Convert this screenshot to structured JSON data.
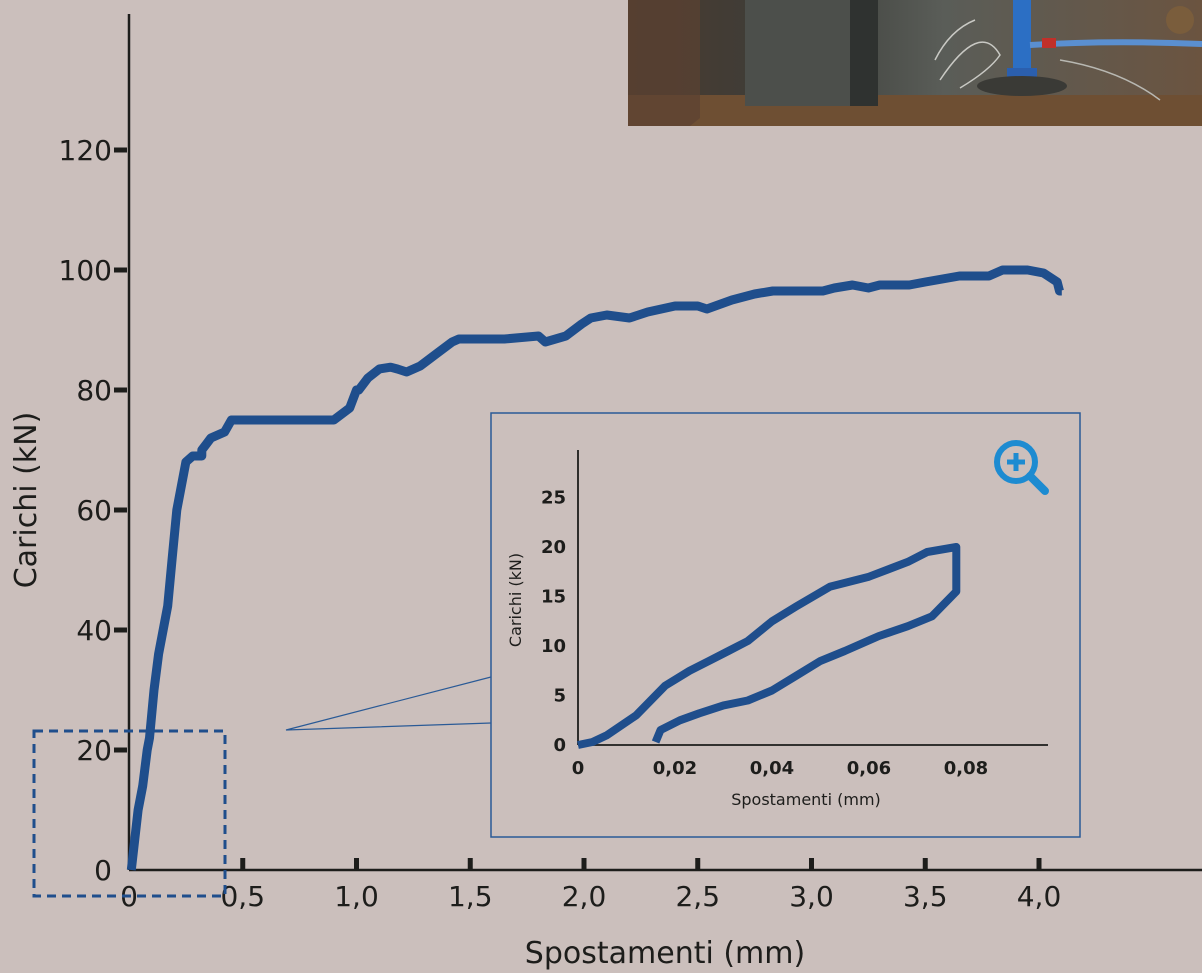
{
  "colors": {
    "background": "#cbbfbc",
    "series": "#1f4e8c",
    "axis": "#1d1d1b",
    "inset_border": "#2a5a96",
    "zoom_icon": "#1d8bd1"
  },
  "icons": {
    "zoom": "zoom-in-icon"
  },
  "chart_data": [
    {
      "type": "line",
      "xlabel": "Spostamenti (mm)",
      "ylabel": "Carichi (kN)",
      "xlim": [
        0,
        4.2
      ],
      "ylim": [
        0,
        140
      ],
      "x_ticks": [
        0,
        0.5,
        1.0,
        1.5,
        2.0,
        2.5,
        3.0,
        3.5,
        4.0
      ],
      "x_tick_labels": [
        "0",
        "0,5",
        "1,0",
        "1,5",
        "2,0",
        "2,5",
        "3,0",
        "3,5",
        "4,0"
      ],
      "y_ticks": [
        0,
        20,
        40,
        60,
        80,
        100,
        120
      ],
      "y_tick_labels": [
        "0",
        "20",
        "40",
        "60",
        "80",
        "100",
        "120"
      ],
      "grid": false,
      "series": [
        {
          "x": [
            0.01,
            0.04,
            0.06,
            0.08,
            0.09,
            0.11,
            0.13,
            0.17,
            0.19,
            0.21,
            0.25,
            0.28,
            0.3,
            0.32,
            0.32,
            0.34,
            0.36,
            0.42,
            0.45,
            0.48,
            0.52,
            0.56,
            0.68,
            0.9,
            0.97,
            1.0,
            1.01,
            1.05,
            1.1,
            1.15,
            1.18,
            1.22,
            1.28,
            1.35,
            1.42,
            1.45,
            1.5,
            1.55,
            1.65,
            1.8,
            1.83,
            1.92,
            1.99,
            2.03,
            2.1,
            2.2,
            2.28,
            2.4,
            2.5,
            2.54,
            2.65,
            2.75,
            2.83,
            2.95,
            3.05,
            3.1,
            3.18,
            3.25,
            3.3,
            3.35,
            3.43,
            3.5,
            3.65,
            3.78,
            3.84,
            3.95,
            4.02,
            4.08,
            4.09,
            4.1
          ],
          "values": [
            0,
            10,
            14,
            20,
            22,
            30,
            36,
            44,
            52,
            60,
            68,
            69,
            69,
            69,
            70,
            71,
            72,
            73,
            75,
            75,
            75,
            75,
            75,
            75,
            77,
            80,
            80,
            82,
            83.5,
            83.8,
            83.5,
            83,
            84,
            86,
            88,
            88.5,
            88.5,
            88.5,
            88.5,
            89,
            88,
            89,
            91,
            92,
            92.5,
            92,
            93,
            94,
            94,
            93.5,
            95,
            96,
            96.5,
            96.5,
            96.5,
            97,
            97.5,
            97,
            97.5,
            97.5,
            97.5,
            98,
            99,
            99,
            100,
            100,
            99.5,
            98,
            96.5,
            96.5
          ]
        }
      ]
    },
    {
      "type": "line",
      "xlabel": "Spostamenti (mm)",
      "ylabel": "Carichi (kN)",
      "xlim": [
        0,
        0.095
      ],
      "ylim": [
        0,
        30
      ],
      "x_ticks": [
        0,
        0.02,
        0.04,
        0.06,
        0.08
      ],
      "x_tick_labels": [
        "0",
        "0,02",
        "0,04",
        "0,06",
        "0,08"
      ],
      "y_ticks": [
        0,
        5,
        10,
        15,
        20,
        25
      ],
      "y_tick_labels": [
        "0",
        "5",
        "10",
        "15",
        "20",
        "25"
      ],
      "grid": false,
      "series": [
        {
          "x": [
            0,
            0.003,
            0.006,
            0.012,
            0.018,
            0.023,
            0.027,
            0.031,
            0.035,
            0.04,
            0.045,
            0.052,
            0.06,
            0.068,
            0.072,
            0.078,
            0.078,
            0.073,
            0.068,
            0.062,
            0.055,
            0.05,
            0.045,
            0.04,
            0.035,
            0.03,
            0.025,
            0.021,
            0.017,
            0.016
          ],
          "values": [
            0,
            0.3,
            1,
            3,
            6,
            7.5,
            8.5,
            9.5,
            10.5,
            12.5,
            14,
            16,
            17,
            18.5,
            19.5,
            20,
            15.5,
            13,
            12,
            11,
            9.5,
            8.5,
            7,
            5.5,
            4.5,
            4,
            3.2,
            2.5,
            1.5,
            0.3
          ]
        }
      ]
    }
  ]
}
